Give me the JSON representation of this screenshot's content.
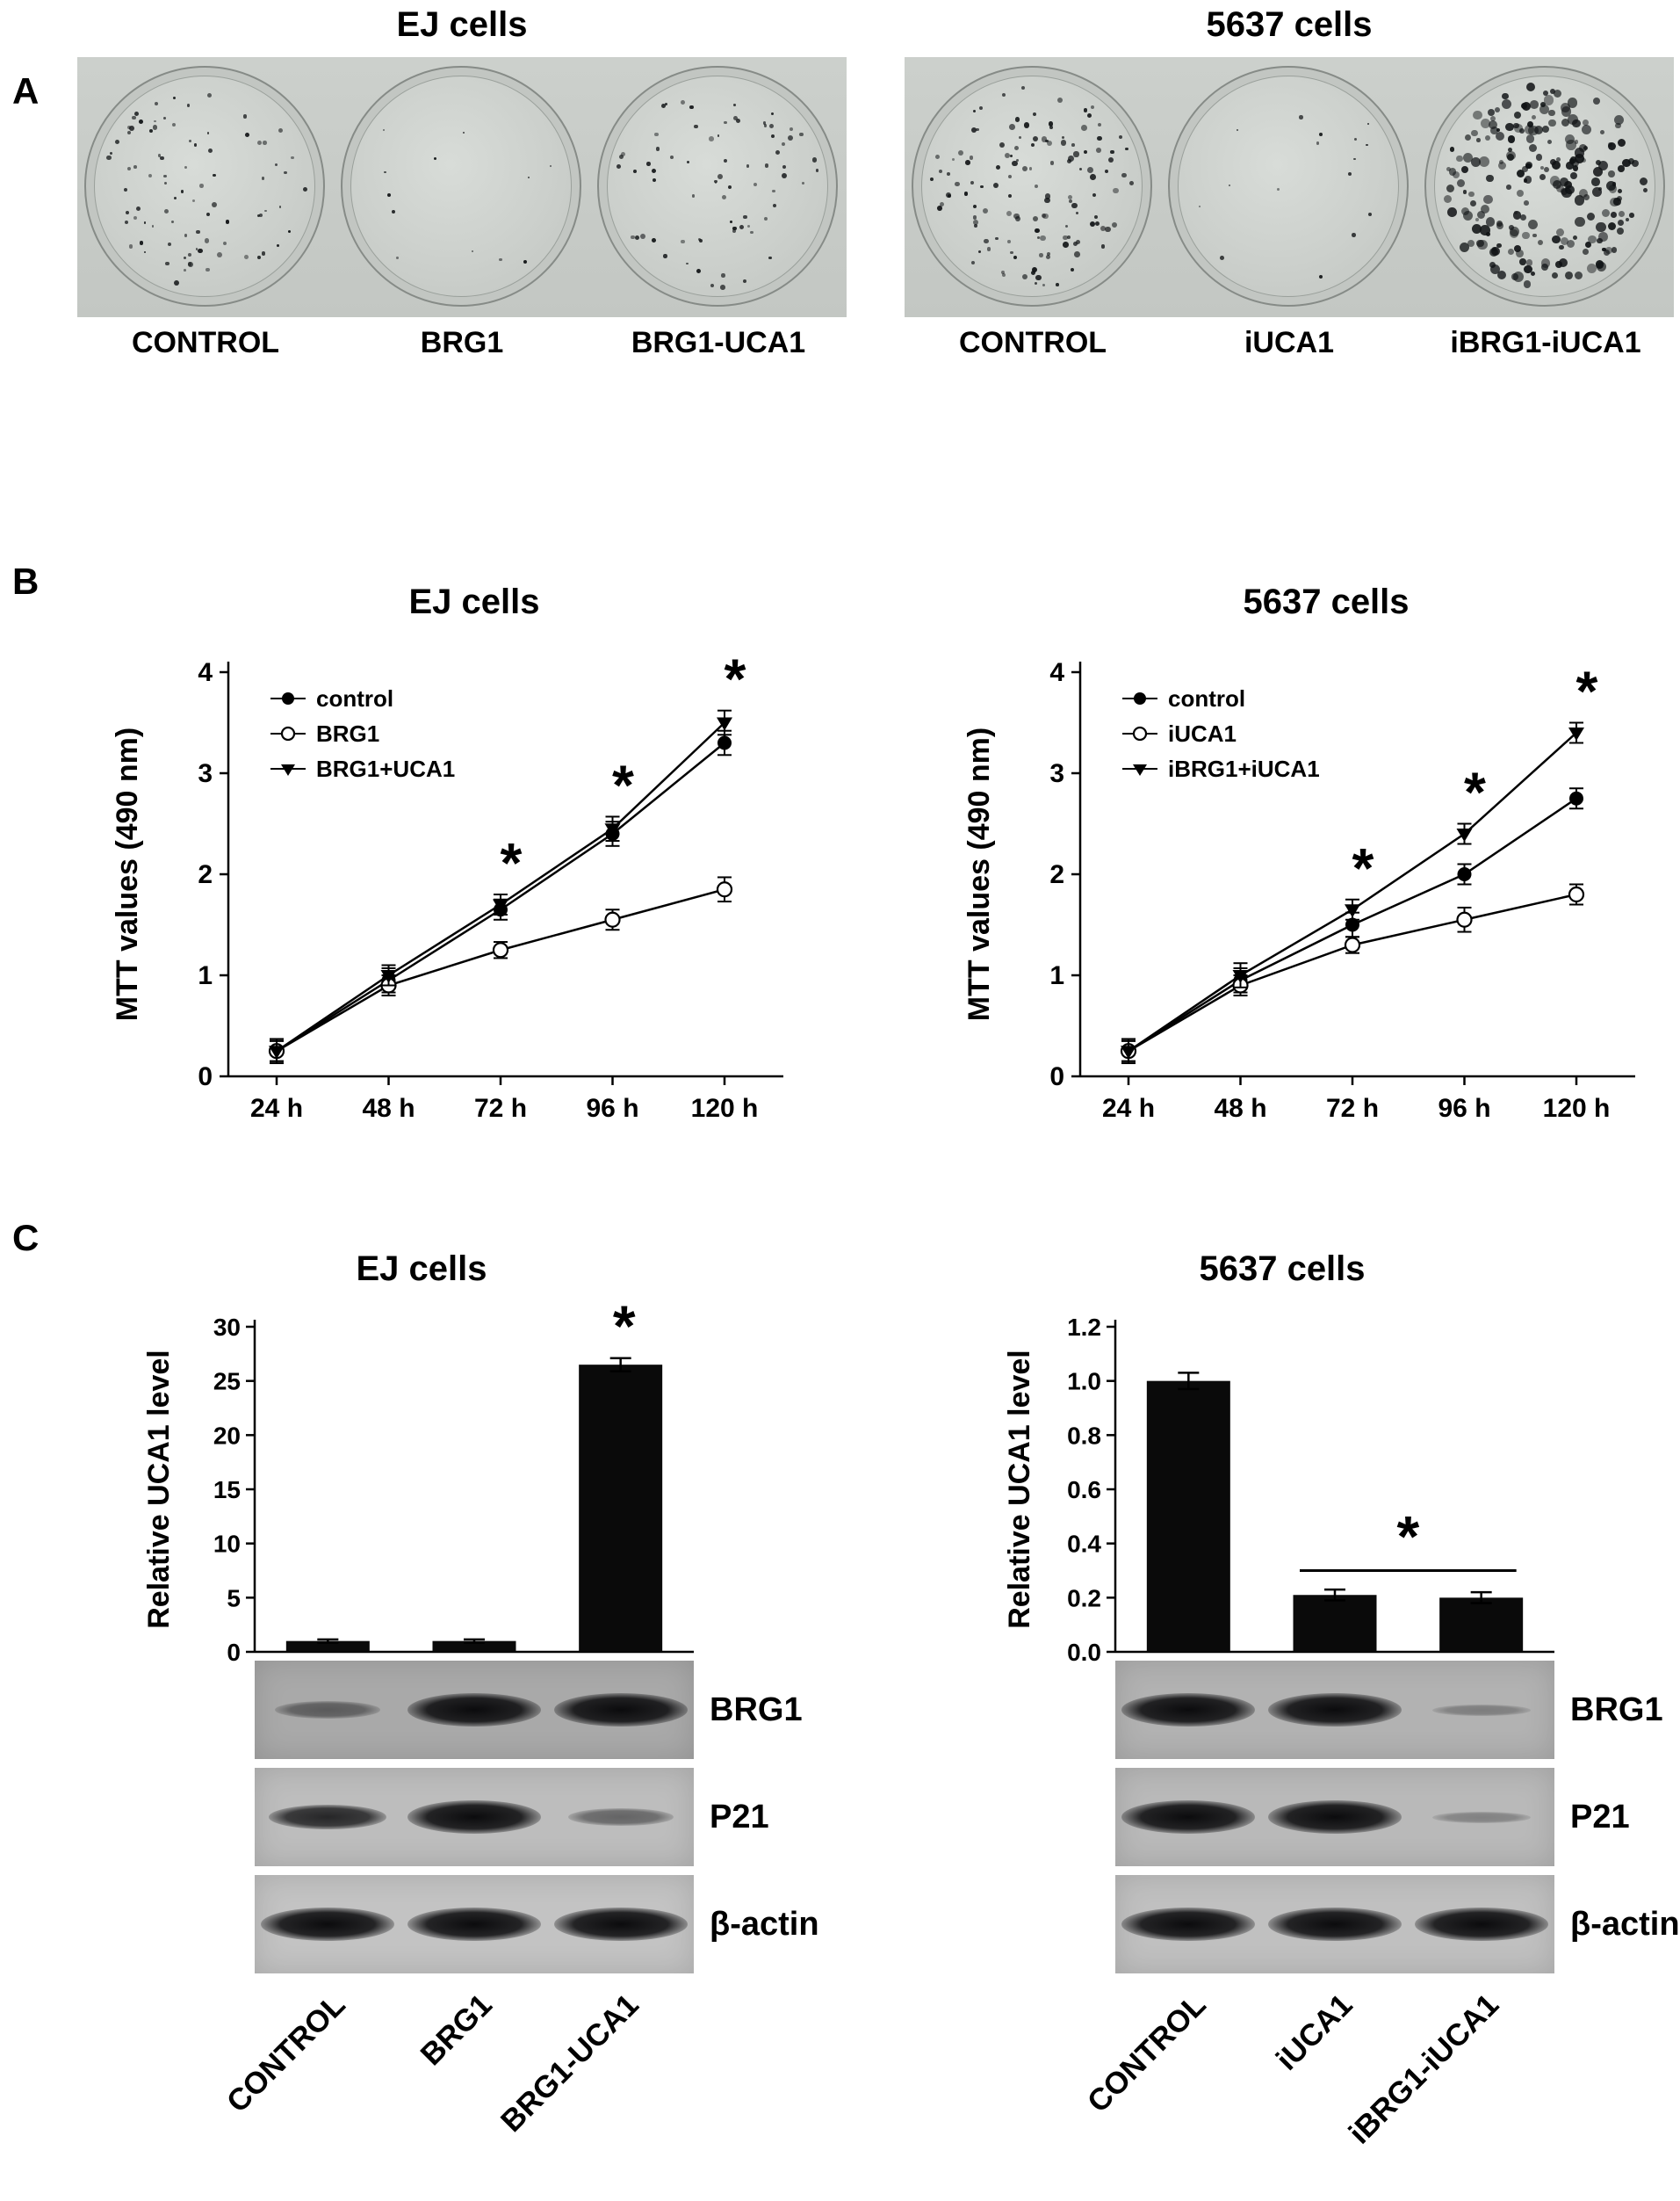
{
  "figure": {
    "panel_a_label": "A",
    "panel_b_label": "B",
    "panel_c_label": "C"
  },
  "panel_a": {
    "groups": [
      {
        "title": "EJ cells",
        "dishes": [
          {
            "label": "CONTROL",
            "colonies": 85,
            "dot_min": 2.5,
            "dot_max": 6
          },
          {
            "label": "BRG1",
            "colonies": 12,
            "dot_min": 2,
            "dot_max": 4.5
          },
          {
            "label": "BRG1-UCA1",
            "colonies": 72,
            "dot_min": 2.5,
            "dot_max": 6
          }
        ]
      },
      {
        "title": "5637 cells",
        "dishes": [
          {
            "label": "CONTROL",
            "colonies": 130,
            "dot_min": 3,
            "dot_max": 7
          },
          {
            "label": "iUCA1",
            "colonies": 16,
            "dot_min": 2,
            "dot_max": 5
          },
          {
            "label": "iBRG1-iUCA1",
            "colonies": 220,
            "dot_min": 4,
            "dot_max": 12
          }
        ]
      }
    ]
  },
  "chart_data": [
    {
      "id": "mtt_ej",
      "type": "line",
      "title": "EJ cells",
      "xlabel": "",
      "ylabel": "MTT values (490 nm)",
      "ylim": [
        0,
        4
      ],
      "yticks": [
        "0",
        "1",
        "2",
        "3",
        "4"
      ],
      "categories": [
        "24 h",
        "48 h",
        "72 h",
        "96 h",
        "120 h"
      ],
      "grid": false,
      "legend_position": "top-left",
      "series": [
        {
          "name": "control",
          "marker": "filled-circle",
          "values": [
            0.25,
            0.95,
            1.65,
            2.4,
            3.3
          ],
          "errors": [
            0.12,
            0.12,
            0.1,
            0.12,
            0.12
          ]
        },
        {
          "name": "BRG1",
          "marker": "open-circle",
          "values": [
            0.25,
            0.9,
            1.25,
            1.55,
            1.85
          ],
          "errors": [
            0.1,
            0.1,
            0.08,
            0.1,
            0.12
          ]
        },
        {
          "name": "BRG1+UCA1",
          "marker": "filled-triangle",
          "values": [
            0.25,
            1.0,
            1.7,
            2.45,
            3.5
          ],
          "errors": [
            0.1,
            0.1,
            0.1,
            0.12,
            0.12
          ]
        }
      ],
      "significance": [
        "72 h",
        "96 h",
        "120 h"
      ]
    },
    {
      "id": "mtt_5637",
      "type": "line",
      "title": "5637 cells",
      "xlabel": "",
      "ylabel": "MTT values (490 nm)",
      "ylim": [
        0,
        4
      ],
      "yticks": [
        "0",
        "1",
        "2",
        "3",
        "4"
      ],
      "categories": [
        "24 h",
        "48 h",
        "72 h",
        "96 h",
        "120 h"
      ],
      "grid": false,
      "legend_position": "top-left",
      "series": [
        {
          "name": "control",
          "marker": "filled-circle",
          "values": [
            0.25,
            0.95,
            1.5,
            2.0,
            2.75
          ],
          "errors": [
            0.12,
            0.12,
            0.12,
            0.1,
            0.1
          ]
        },
        {
          "name": "iUCA1",
          "marker": "open-circle",
          "values": [
            0.25,
            0.9,
            1.3,
            1.55,
            1.8
          ],
          "errors": [
            0.1,
            0.1,
            0.08,
            0.12,
            0.1
          ]
        },
        {
          "name": "iBRG1+iUCA1",
          "marker": "filled-triangle",
          "values": [
            0.25,
            1.0,
            1.65,
            2.4,
            3.4
          ],
          "errors": [
            0.1,
            0.12,
            0.1,
            0.1,
            0.1
          ]
        }
      ],
      "significance": [
        "72 h",
        "96 h",
        "120 h"
      ]
    },
    {
      "id": "uca1_ej",
      "type": "bar",
      "title": "EJ cells",
      "xlabel": "",
      "ylabel": "Relative UCA1 level",
      "ylim": [
        0,
        30
      ],
      "yticks": [
        "0",
        "5",
        "10",
        "15",
        "20",
        "25",
        "30"
      ],
      "categories": [
        "CONTROL",
        "BRG1",
        "BRG1-UCA1"
      ],
      "values": [
        1.0,
        1.0,
        26.5
      ],
      "errors": [
        0.15,
        0.15,
        0.6
      ],
      "bar_color": "#0a0a0a",
      "grid": false,
      "significance": {
        "type": "star",
        "category": "BRG1-UCA1"
      }
    },
    {
      "id": "uca1_5637",
      "type": "bar",
      "title": "5637 cells",
      "xlabel": "",
      "ylabel": "Relative UCA1 level",
      "ylim": [
        0,
        1.2
      ],
      "yticks": [
        "0.0",
        "0.2",
        "0.4",
        "0.6",
        "0.8",
        "1.0",
        "1.2"
      ],
      "categories": [
        "CONTROL",
        "iUCA1",
        "iBRG1-iUCA1"
      ],
      "values": [
        1.0,
        0.21,
        0.2
      ],
      "errors": [
        0.03,
        0.02,
        0.02
      ],
      "bar_color": "#0a0a0a",
      "grid": false,
      "significance": {
        "type": "bar-star",
        "from": "iUCA1",
        "to": "iBRG1-iUCA1",
        "line_y": 0.3
      }
    }
  ],
  "panel_c": {
    "blot_groups": [
      {
        "cell_line": "EJ cells",
        "rows": [
          {
            "label": "BRG1",
            "bg": "#a9a9a9",
            "bands": [
              "faint",
              "strong",
              "strong"
            ]
          },
          {
            "label": "P21",
            "bg": "#bdbdbd",
            "bands": [
              "medium",
              "strong",
              "faint"
            ]
          },
          {
            "label": "β-actin",
            "bg": "#c3c3c3",
            "bands": [
              "strong",
              "strong",
              "strong"
            ]
          }
        ],
        "lane_labels": [
          "CONTROL",
          "BRG1",
          "BRG1-UCA1"
        ]
      },
      {
        "cell_line": "5637 cells",
        "rows": [
          {
            "label": "BRG1",
            "bg": "#b2b2b2",
            "bands": [
              "strong",
              "strong",
              "veryfaint"
            ]
          },
          {
            "label": "P21",
            "bg": "#b9b9b9",
            "bands": [
              "strong",
              "strong",
              "veryfaint"
            ]
          },
          {
            "label": "β-actin",
            "bg": "#c0c0c0",
            "bands": [
              "strong",
              "strong",
              "strong"
            ]
          }
        ],
        "lane_labels": [
          "CONTROL",
          "iUCA1",
          "iBRG1-iUCA1"
        ]
      }
    ]
  }
}
